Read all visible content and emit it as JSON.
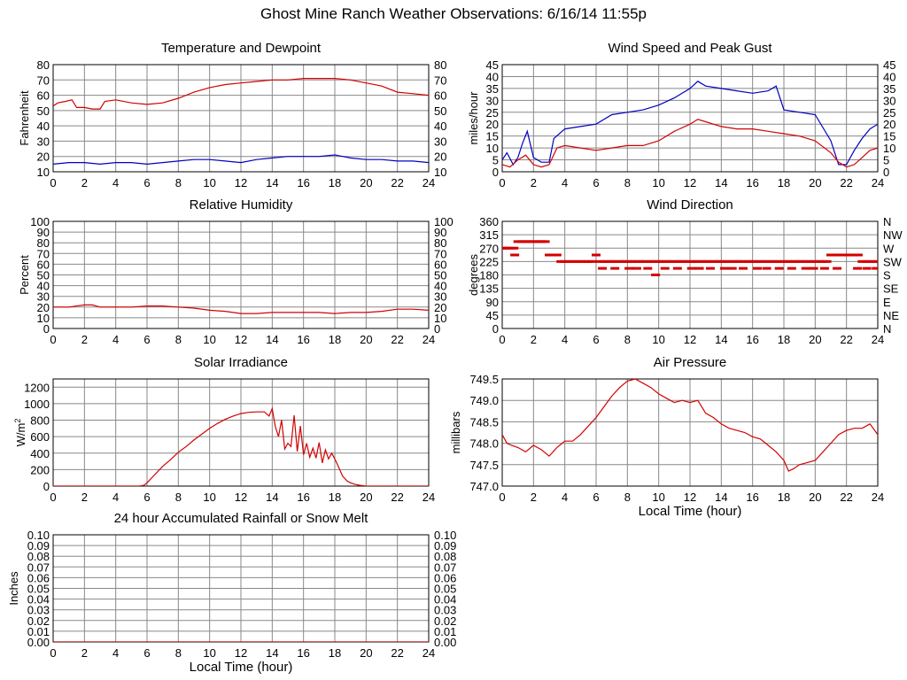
{
  "page_title": "Ghost Mine Ranch Weather Observations: 6/16/14 11:55p",
  "colors": {
    "series_red": "#d40000",
    "series_blue": "#0000c0",
    "grid": "#888888",
    "frame": "#000000"
  },
  "chart_data": [
    {
      "id": "temperature",
      "type": "line",
      "title": "Temperature and Dewpoint",
      "xlabel": "",
      "ylabel": "Fahrenheit",
      "xlim": [
        0,
        24
      ],
      "ylim": [
        10,
        80
      ],
      "x_ticks": [
        "0",
        "2",
        "4",
        "6",
        "8",
        "10",
        "12",
        "14",
        "16",
        "18",
        "20",
        "22",
        "24"
      ],
      "y_ticks": [
        "10",
        "20",
        "30",
        "40",
        "50",
        "60",
        "70",
        "80"
      ],
      "right_ticks": [
        "10",
        "20",
        "30",
        "40",
        "50",
        "60",
        "70",
        "80"
      ],
      "series": [
        {
          "color": "#d40000",
          "x": [
            0,
            0.3,
            0.8,
            1.2,
            1.5,
            2,
            2.5,
            3,
            3.3,
            4,
            5,
            6,
            7,
            8,
            9,
            10,
            11,
            12,
            13,
            14,
            15,
            16,
            17,
            18,
            19,
            20,
            21,
            22,
            23,
            24
          ],
          "y": [
            53,
            55,
            56,
            57,
            52,
            52,
            51,
            51,
            56,
            57,
            55,
            54,
            55,
            58,
            62,
            65,
            67,
            68,
            69,
            70,
            70,
            71,
            71,
            71,
            70,
            68,
            66,
            62,
            61,
            60
          ]
        },
        {
          "color": "#0000c0",
          "x": [
            0,
            1,
            2,
            3,
            4,
            5,
            6,
            7,
            8,
            9,
            10,
            11,
            12,
            13,
            14,
            15,
            16,
            17,
            18,
            19,
            20,
            21,
            22,
            23,
            24
          ],
          "y": [
            15,
            16,
            16,
            15,
            16,
            16,
            15,
            16,
            17,
            18,
            18,
            17,
            16,
            18,
            19,
            20,
            20,
            20,
            21,
            19,
            18,
            18,
            17,
            17,
            16
          ]
        }
      ]
    },
    {
      "id": "wind_speed",
      "type": "line",
      "title": "Wind Speed and Peak Gust",
      "xlabel": "",
      "ylabel": "miles/hour",
      "xlim": [
        0,
        24
      ],
      "ylim": [
        0,
        45
      ],
      "x_ticks": [
        "0",
        "2",
        "4",
        "6",
        "8",
        "10",
        "12",
        "14",
        "16",
        "18",
        "20",
        "22",
        "24"
      ],
      "y_ticks": [
        "0",
        "5",
        "10",
        "15",
        "20",
        "25",
        "30",
        "35",
        "40",
        "45"
      ],
      "right_ticks": [
        "0",
        "5",
        "10",
        "15",
        "20",
        "25",
        "30",
        "35",
        "40",
        "45"
      ],
      "series": [
        {
          "color": "#0000c0",
          "x": [
            0,
            0.3,
            0.7,
            1,
            1.3,
            1.6,
            2,
            2.5,
            3,
            3.3,
            4,
            5,
            6,
            7,
            8,
            9,
            10,
            11,
            12,
            12.5,
            13,
            14,
            15,
            16,
            17,
            17.5,
            18,
            19,
            20,
            21,
            21.5,
            22,
            22.5,
            23,
            23.5,
            24
          ],
          "y": [
            5,
            8,
            3,
            6,
            12,
            17,
            6,
            4,
            4,
            14,
            18,
            19,
            20,
            24,
            25,
            26,
            28,
            31,
            35,
            38,
            36,
            35,
            34,
            33,
            34,
            36,
            26,
            25,
            24,
            13,
            3,
            3,
            9,
            14,
            18,
            20
          ]
        },
        {
          "color": "#d40000",
          "x": [
            0,
            0.5,
            1,
            1.5,
            2,
            2.5,
            3,
            3.5,
            4,
            5,
            6,
            7,
            8,
            9,
            10,
            11,
            12,
            12.5,
            13,
            14,
            15,
            16,
            17,
            18,
            19,
            20,
            21,
            21.5,
            22,
            22.5,
            23,
            23.5,
            24
          ],
          "y": [
            3,
            2,
            5,
            7,
            3,
            2,
            3,
            10,
            11,
            10,
            9,
            10,
            11,
            11,
            13,
            17,
            20,
            22,
            21,
            19,
            18,
            18,
            17,
            16,
            15,
            13,
            8,
            4,
            2,
            3,
            6,
            9,
            10
          ]
        }
      ]
    },
    {
      "id": "humidity",
      "type": "line",
      "title": "Relative Humidity",
      "xlabel": "",
      "ylabel": "Percent",
      "xlim": [
        0,
        24
      ],
      "ylim": [
        0,
        100
      ],
      "x_ticks": [
        "0",
        "2",
        "4",
        "6",
        "8",
        "10",
        "12",
        "14",
        "16",
        "18",
        "20",
        "22",
        "24"
      ],
      "y_ticks": [
        "0",
        "10",
        "20",
        "30",
        "40",
        "50",
        "60",
        "70",
        "80",
        "90",
        "100"
      ],
      "right_ticks": [
        "0",
        "10",
        "20",
        "30",
        "40",
        "50",
        "60",
        "70",
        "80",
        "90",
        "100"
      ],
      "series": [
        {
          "color": "#d40000",
          "x": [
            0,
            1,
            2,
            2.5,
            3,
            4,
            5,
            6,
            7,
            8,
            9,
            10,
            11,
            12,
            13,
            14,
            15,
            16,
            17,
            18,
            19,
            20,
            21,
            22,
            23,
            24
          ],
          "y": [
            20,
            20,
            22,
            22,
            20,
            20,
            20,
            21,
            21,
            20,
            19,
            17,
            16,
            14,
            14,
            15,
            15,
            15,
            15,
            14,
            15,
            15,
            16,
            18,
            18,
            17
          ]
        }
      ]
    },
    {
      "id": "wind_direction",
      "type": "scatter",
      "title": "Wind Direction",
      "xlabel": "",
      "ylabel": "degrees",
      "xlim": [
        0,
        24
      ],
      "ylim": [
        0,
        360
      ],
      "x_ticks": [
        "0",
        "2",
        "4",
        "6",
        "8",
        "10",
        "12",
        "14",
        "16",
        "18",
        "20",
        "22",
        "24"
      ],
      "y_ticks": [
        "0",
        "45",
        "90",
        "135",
        "180",
        "225",
        "270",
        "315",
        "360"
      ],
      "right_ticks": [
        "N",
        "NE",
        "E",
        "SE",
        "S",
        "SW",
        "W",
        "NW",
        "N"
      ],
      "series": [
        {
          "color": "#d40000",
          "x": [
            0,
            0.25,
            0.5,
            0.75,
            1,
            1.25,
            1.5,
            1.75,
            2,
            2.25,
            2.5,
            2.75,
            0.8,
            3,
            3.25,
            3.5,
            3.75,
            4,
            4.25,
            4.5,
            4.75,
            5,
            5.25,
            5.5,
            5.75,
            6,
            6.25,
            6.5,
            6.75,
            7,
            7.25,
            7.5,
            7.75,
            8,
            8.25,
            8.5,
            8.75,
            9,
            9.25,
            9.5,
            9.75,
            10,
            10.25,
            10.5,
            10.75,
            11,
            11.25,
            11.5,
            11.75,
            12,
            12.25,
            12.5,
            12.75,
            13,
            13.25,
            13.5,
            13.75,
            14,
            14.25,
            14.5,
            14.75,
            15,
            15.25,
            15.5,
            15.75,
            16,
            16.25,
            16.5,
            16.75,
            17,
            17.25,
            17.5,
            17.75,
            18,
            18.25,
            18.5,
            18.75,
            19,
            19.25,
            19.5,
            19.75,
            20,
            20.25,
            20.5,
            20.75,
            21,
            21.25,
            21.5,
            21.75,
            22,
            22.25,
            22.5,
            22.75,
            23,
            23.25,
            23.5,
            23.75,
            24,
            6.4,
            7.2,
            8.1,
            8.6,
            9.3,
            9.8,
            10.4,
            11.2,
            12.1,
            12.6,
            13.3,
            14.2,
            14.7,
            15.4,
            16.3,
            16.9,
            17.7,
            18.5,
            19.4,
            19.9,
            20.6,
            21.4,
            22.7,
            23.3,
            23.9
          ],
          "y": [
            270,
            270,
            270,
            270,
            292,
            292,
            292,
            292,
            292,
            292,
            292,
            292,
            247,
            247,
            247,
            247,
            225,
            225,
            225,
            225,
            225,
            225,
            225,
            225,
            225,
            247,
            225,
            225,
            225,
            225,
            225,
            225,
            225,
            225,
            225,
            225,
            225,
            225,
            225,
            225,
            225,
            225,
            225,
            225,
            225,
            225,
            225,
            225,
            225,
            225,
            225,
            225,
            225,
            225,
            225,
            225,
            225,
            225,
            225,
            225,
            225,
            225,
            225,
            225,
            225,
            225,
            225,
            225,
            225,
            225,
            225,
            225,
            225,
            225,
            225,
            225,
            225,
            225,
            225,
            225,
            225,
            225,
            225,
            225,
            225,
            247,
            247,
            247,
            247,
            247,
            247,
            247,
            247,
            225,
            225,
            225,
            225,
            225,
            202,
            202,
            202,
            202,
            202,
            180,
            202,
            202,
            202,
            202,
            202,
            202,
            202,
            202,
            202,
            202,
            202,
            202,
            202,
            202,
            202,
            202,
            202,
            202,
            202
          ]
        }
      ]
    },
    {
      "id": "solar",
      "type": "line",
      "title": "Solar Irradiance",
      "xlabel": "",
      "ylabel": "W/m2",
      "xlim": [
        0,
        24
      ],
      "ylim": [
        0,
        1300
      ],
      "x_ticks": [
        "0",
        "2",
        "4",
        "6",
        "8",
        "10",
        "12",
        "14",
        "16",
        "18",
        "20",
        "22",
        "24"
      ],
      "y_ticks": [
        "0",
        "200",
        "400",
        "600",
        "800",
        "1000",
        "1200"
      ],
      "series": [
        {
          "color": "#d40000",
          "x": [
            0,
            5.5,
            5.8,
            6,
            6.5,
            7,
            7.5,
            8,
            8.5,
            9,
            9.5,
            10,
            10.5,
            11,
            11.5,
            12,
            12.5,
            13,
            13.5,
            13.8,
            14,
            14.2,
            14.4,
            14.6,
            14.8,
            15,
            15.2,
            15.4,
            15.6,
            15.8,
            16,
            16.2,
            16.4,
            16.6,
            16.8,
            17,
            17.2,
            17.4,
            17.6,
            17.8,
            18,
            18.2,
            18.5,
            18.8,
            19,
            19.3,
            19.6,
            20,
            20.5,
            21,
            24
          ],
          "y": [
            0,
            0,
            10,
            40,
            140,
            240,
            320,
            410,
            480,
            560,
            630,
            700,
            760,
            810,
            850,
            880,
            895,
            900,
            900,
            850,
            940,
            720,
            600,
            800,
            450,
            520,
            480,
            860,
            420,
            730,
            380,
            520,
            350,
            460,
            340,
            530,
            280,
            440,
            330,
            400,
            330,
            250,
            120,
            60,
            40,
            20,
            10,
            0,
            0,
            0,
            0
          ]
        }
      ]
    },
    {
      "id": "pressure",
      "type": "line",
      "title": "Air Pressure",
      "xlabel": "Local Time (hour)",
      "ylabel": "millibars",
      "xlim": [
        0,
        24
      ],
      "ylim": [
        747.0,
        749.5
      ],
      "x_ticks": [
        "0",
        "2",
        "4",
        "6",
        "8",
        "10",
        "12",
        "14",
        "16",
        "18",
        "20",
        "22",
        "24"
      ],
      "y_ticks": [
        "747.0",
        "747.5",
        "748.0",
        "748.5",
        "749.0",
        "749.5"
      ],
      "series": [
        {
          "color": "#d40000",
          "x": [
            0,
            0.3,
            0.6,
            1,
            1.5,
            2,
            2.5,
            3,
            3.5,
            4,
            4.5,
            5,
            5.5,
            6,
            6.5,
            7,
            7.5,
            8,
            8.5,
            9,
            9.5,
            10,
            10.5,
            11,
            11.5,
            12,
            12.5,
            13,
            13.5,
            14,
            14.5,
            15,
            15.5,
            16,
            16.5,
            17,
            17.5,
            18,
            18.3,
            18.6,
            19,
            19.5,
            20,
            20.5,
            21,
            21.5,
            22,
            22.5,
            23,
            23.5,
            24
          ],
          "y": [
            748.2,
            748.0,
            747.95,
            747.9,
            747.8,
            747.95,
            747.85,
            747.7,
            747.9,
            748.05,
            748.05,
            748.2,
            748.4,
            748.6,
            748.85,
            749.1,
            749.3,
            749.45,
            749.5,
            749.4,
            749.3,
            749.15,
            749.05,
            748.95,
            749.0,
            748.95,
            749.0,
            748.7,
            748.6,
            748.45,
            748.35,
            748.3,
            748.25,
            748.15,
            748.1,
            747.95,
            747.8,
            747.6,
            747.35,
            747.4,
            747.5,
            747.55,
            747.6,
            747.8,
            748.0,
            748.2,
            748.3,
            748.35,
            748.35,
            748.45,
            748.2
          ]
        }
      ]
    },
    {
      "id": "rainfall",
      "type": "line",
      "title": "24 hour Accumulated Rainfall or Snow Melt",
      "xlabel": "Local Time (hour)",
      "ylabel": "Inches",
      "xlim": [
        0,
        24
      ],
      "ylim": [
        0,
        0.1
      ],
      "x_ticks": [
        "0",
        "2",
        "4",
        "6",
        "8",
        "10",
        "12",
        "14",
        "16",
        "18",
        "20",
        "22",
        "24"
      ],
      "y_ticks": [
        "0.00",
        "0.01",
        "0.02",
        "0.03",
        "0.04",
        "0.05",
        "0.06",
        "0.07",
        "0.08",
        "0.09",
        "0.10"
      ],
      "right_ticks": [
        "0.00",
        "0.01",
        "0.02",
        "0.03",
        "0.04",
        "0.05",
        "0.06",
        "0.07",
        "0.08",
        "0.09",
        "0.10"
      ],
      "series": [
        {
          "color": "#d40000",
          "x": [
            0,
            24
          ],
          "y": [
            0,
            0
          ]
        }
      ]
    }
  ]
}
